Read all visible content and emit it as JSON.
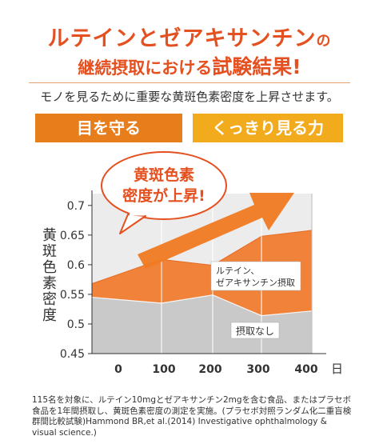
{
  "header": {
    "title_line1_main": "ルテインとゼアキサンチン",
    "title_line1_particle": "の",
    "title_line2_pre": "継続摂取における",
    "title_line2_emph": "試験結果!",
    "subtitle": "モノを見るために重要な黄斑色素密度を上昇させます。"
  },
  "tags": {
    "left": "目を守る",
    "right": "くっきり見る力"
  },
  "callout": {
    "line1": "黄斑色素",
    "line2": "密度が上昇!"
  },
  "colors": {
    "accent": "#e4501f",
    "tag_left": "#e87d1b",
    "tag_right": "#f2ab1d",
    "series_lutein": "#f0823a",
    "series_none": "#c9c9c9",
    "arrow": "#f07a22"
  },
  "chart_data": {
    "type": "area",
    "ylabel": "黄斑色素密度",
    "xlabel_unit": "日",
    "x": [
      0,
      100,
      200,
      300,
      400
    ],
    "x_ticks": [
      "0",
      "100",
      "200",
      "300",
      "400"
    ],
    "y_ticks": [
      "0.7",
      "0.65",
      "0.6",
      "0.55",
      "0.5",
      "0.45"
    ],
    "ylim": [
      0.45,
      0.72
    ],
    "series": [
      {
        "name": "ルテイン、ゼアキサンチン摂取",
        "values": [
          0.568,
          0.609,
          0.599,
          0.648,
          0.658
        ]
      },
      {
        "name": "摂取なし",
        "values": [
          0.545,
          0.535,
          0.549,
          0.514,
          0.522
        ]
      }
    ],
    "series_labels": [
      "ルテイン、",
      "ゼアキサンチン摂取"
    ]
  },
  "footnote": "115名を対象に、ルテイン10mgとゼアキサンチン2mgを含む食品、またはプラセボ食品を1年間摂取し、黄斑色素密度の測定を実施。(プラセボ対照ランダム化二重盲検群間比較試験)Hammond BR,et al.(2014) Investigative ophthalmology & visual science.)"
}
